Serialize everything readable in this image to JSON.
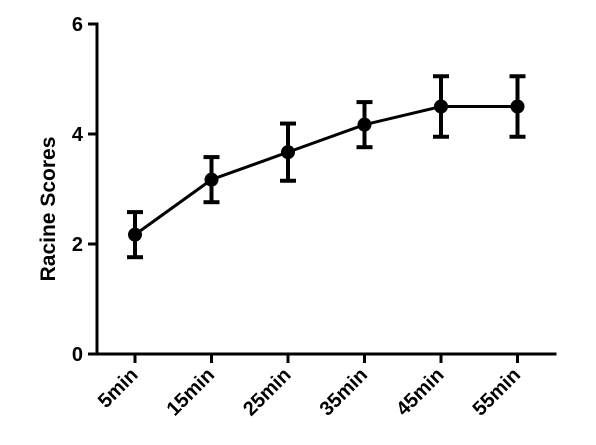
{
  "chart_data": {
    "type": "line",
    "title": "",
    "xlabel": "",
    "ylabel": "Racine Scores",
    "categories": [
      "5min",
      "15min",
      "25min",
      "35min",
      "45min",
      "55min"
    ],
    "ylim": [
      0,
      6
    ],
    "y_ticks": [
      "0",
      "2",
      "4",
      "6"
    ],
    "grid": false,
    "legend": "none",
    "series": [
      {
        "values": [
          2.17,
          3.17,
          3.67,
          4.17,
          4.5,
          4.5
        ],
        "error": [
          0.41,
          0.41,
          0.52,
          0.41,
          0.55,
          0.55
        ]
      }
    ],
    "colors": {
      "line": "#000000",
      "marker": "#000000"
    }
  }
}
